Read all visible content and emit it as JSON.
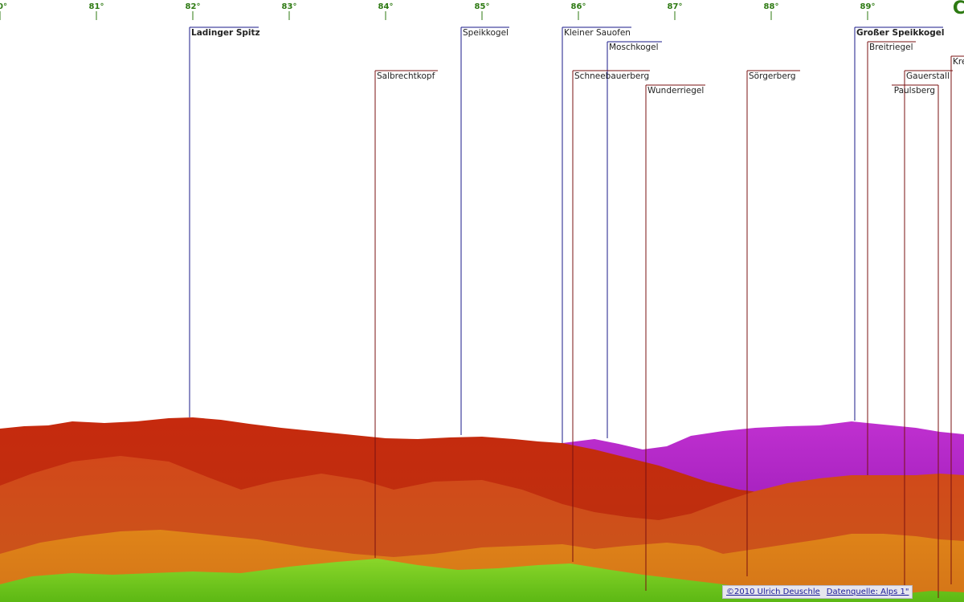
{
  "compass": {
    "corner_text": "C",
    "ticks": [
      "0°",
      "81°",
      "82°",
      "83°",
      "84°",
      "85°",
      "86°",
      "87°",
      "88°",
      "89°"
    ]
  },
  "peaks": [
    {
      "name": "Ladinger Spitz",
      "bold": true,
      "line_color": "#1a1a8a"
    },
    {
      "name": "Salbrechtkopf",
      "bold": false,
      "line_color": "#7a1010"
    },
    {
      "name": "Speikkogel",
      "bold": false,
      "line_color": "#1a1a8a"
    },
    {
      "name": "Kleiner Sauofen",
      "bold": false,
      "line_color": "#1a1a8a"
    },
    {
      "name": "Moschkogel",
      "bold": false,
      "line_color": "#1a1a8a"
    },
    {
      "name": "Schneebauerberg",
      "bold": false,
      "line_color": "#7a1010"
    },
    {
      "name": "Wunderriegel",
      "bold": false,
      "line_color": "#7a1010"
    },
    {
      "name": "Sörgerberg",
      "bold": false,
      "line_color": "#7a1010"
    },
    {
      "name": "Großer Speikkogel",
      "bold": true,
      "line_color": "#1a1a8a"
    },
    {
      "name": "Breitriegel",
      "bold": false,
      "line_color": "#7a1010"
    },
    {
      "name": "Krennkogel",
      "bold": false,
      "line_color": "#7a1010"
    },
    {
      "name": "Gauerstall",
      "bold": false,
      "line_color": "#7a1010"
    },
    {
      "name": "Paulsberg",
      "bold": false,
      "line_color": "#7a1010"
    }
  ],
  "credits": {
    "author": "©2010 Ulrich Deuschle",
    "source": "Datenquelle: Alps 1\""
  },
  "colors": {
    "far_ridge": "#c52a10",
    "purple_ridge": "#b322c8",
    "mid_ridge": "#d35a12",
    "orange_ridge": "#e08a18",
    "green_foreground": "#6cc51a",
    "tick_color": "#2d7a12"
  }
}
